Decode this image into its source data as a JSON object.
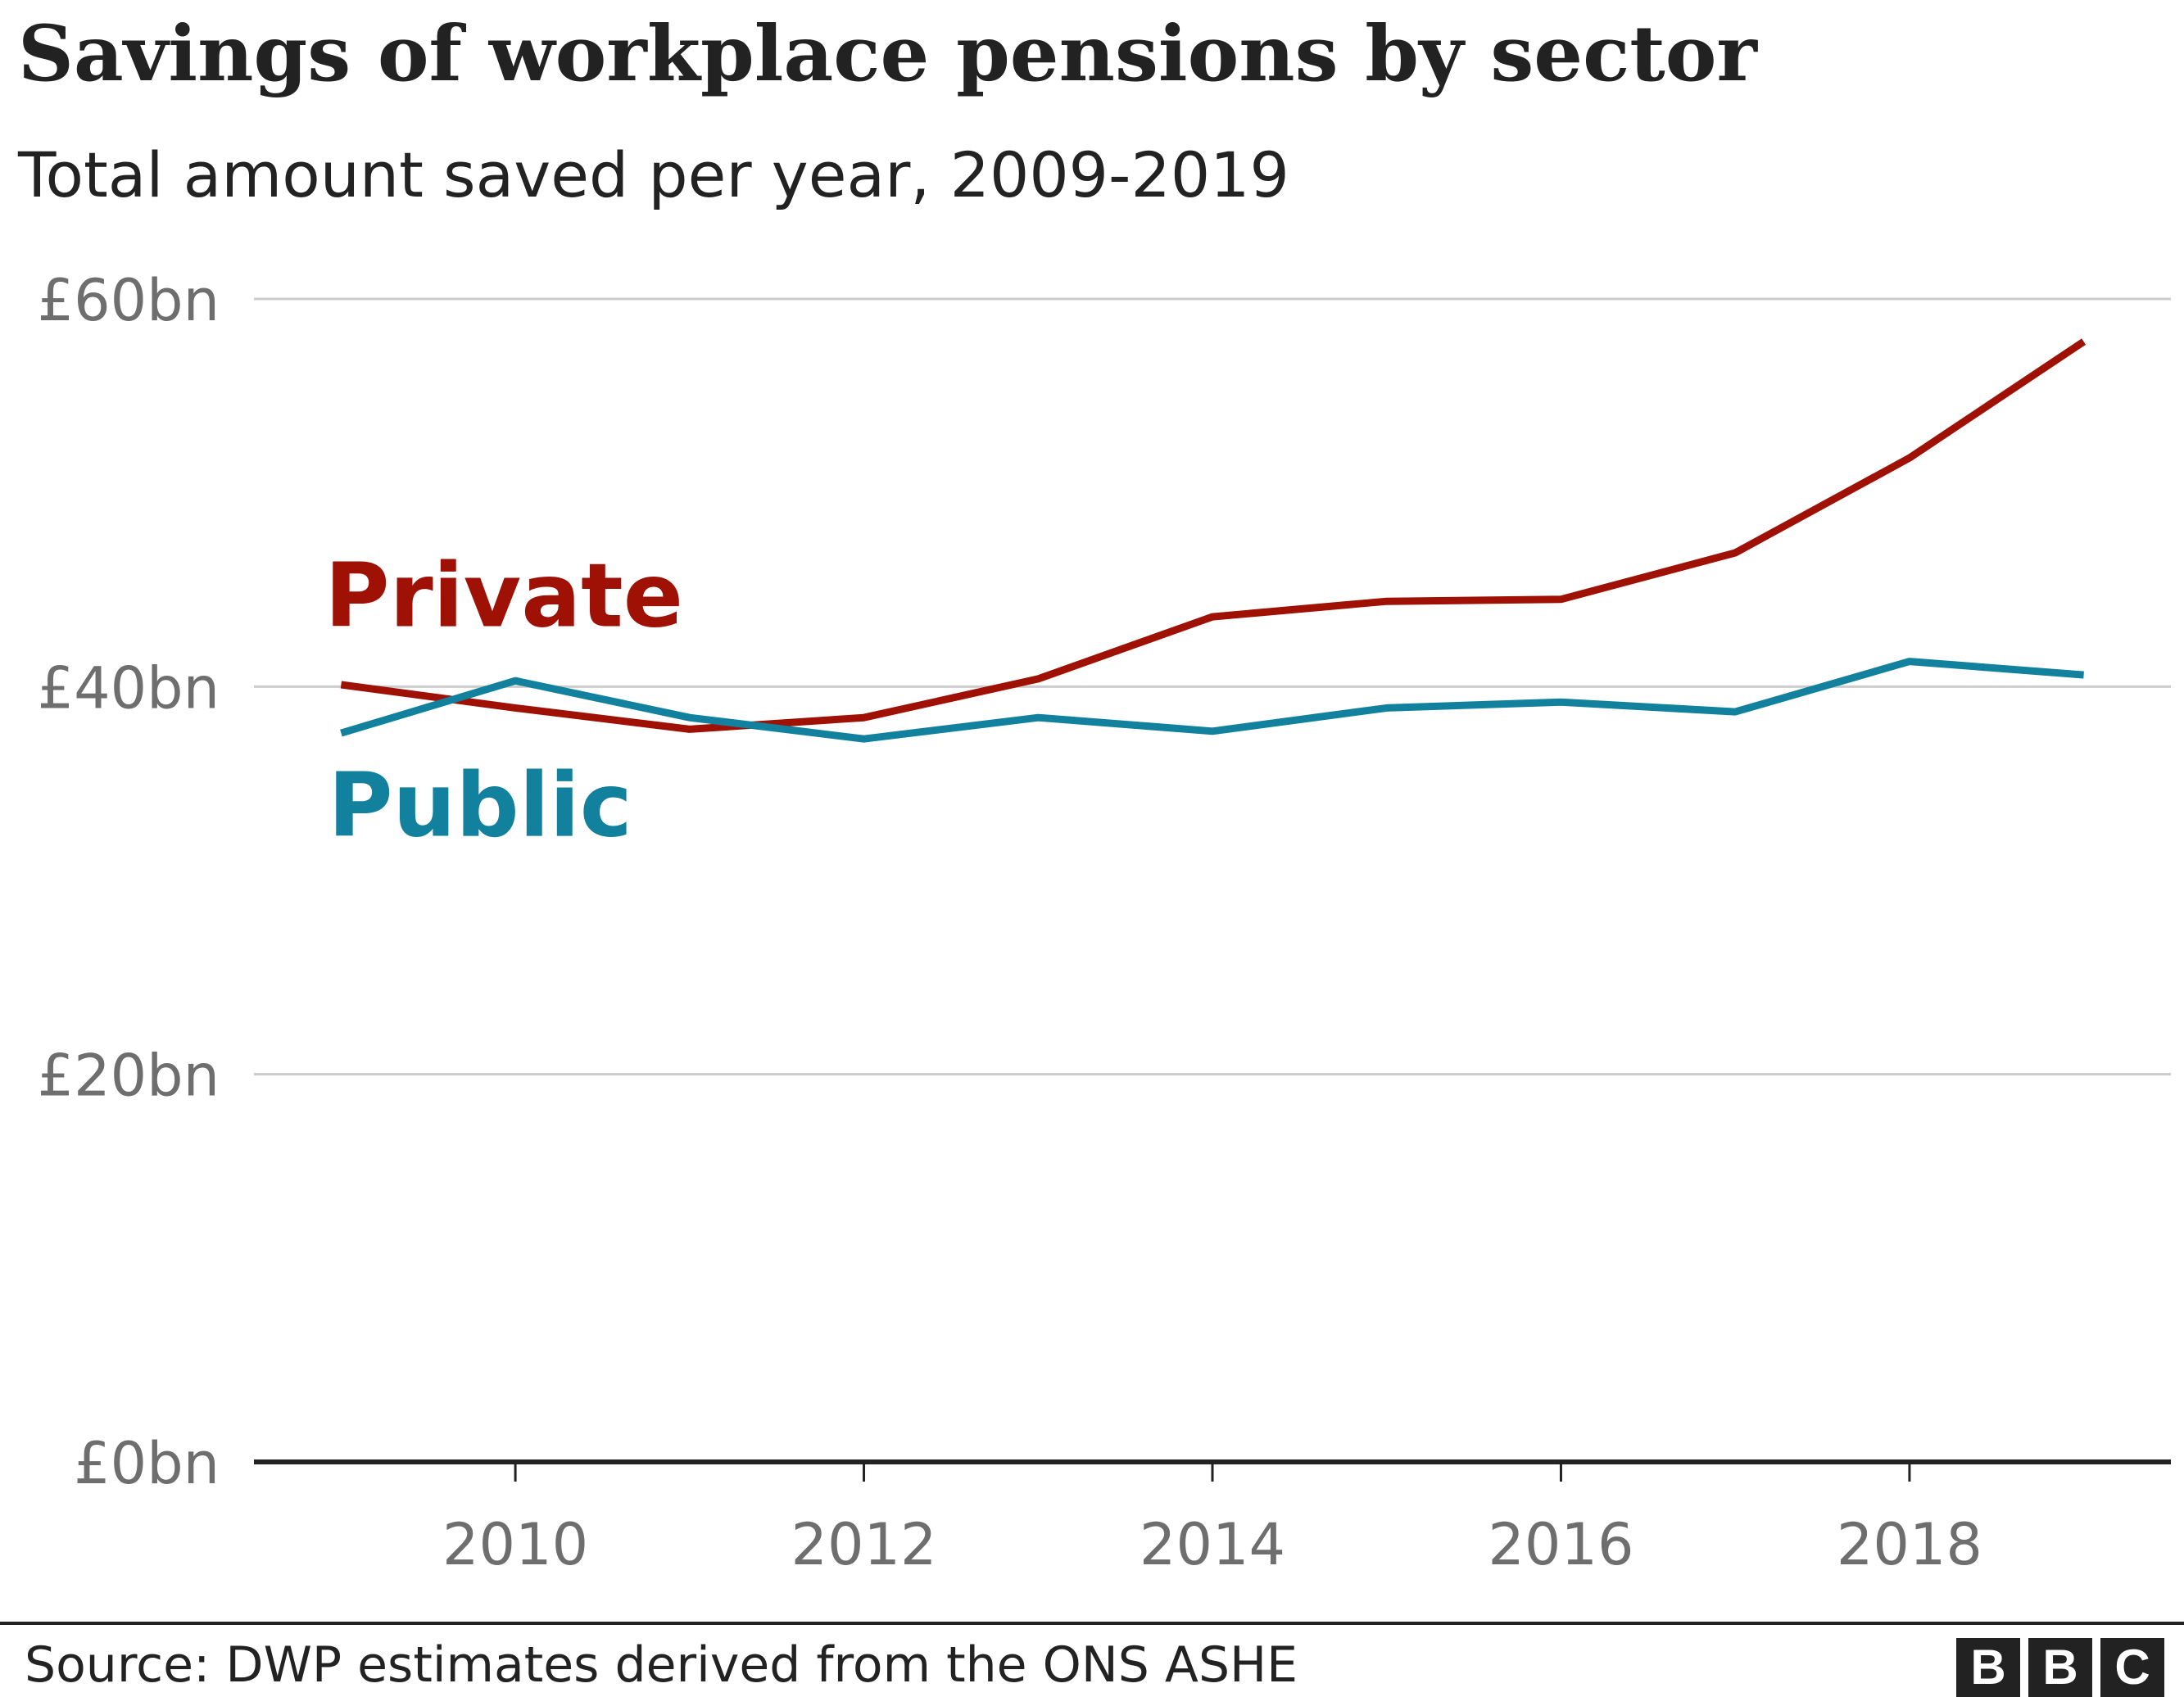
{
  "header": {
    "title": "Savings of workplace pensions by sector",
    "subtitle": "Total amount saved per year, 2009-2019"
  },
  "chart_data": {
    "type": "line",
    "x": [
      2009,
      2010,
      2011,
      2012,
      2013,
      2014,
      2015,
      2016,
      2017,
      2018,
      2019
    ],
    "series": [
      {
        "name": "Private",
        "color": "#9e1104",
        "values": [
          40.1,
          38.9,
          37.8,
          38.4,
          40.4,
          43.6,
          44.4,
          44.5,
          46.9,
          51.8,
          57.8
        ]
      },
      {
        "name": "Public",
        "color": "#12819e",
        "values": [
          37.6,
          40.3,
          38.4,
          37.3,
          38.4,
          37.7,
          38.9,
          39.2,
          38.7,
          41.3,
          40.6
        ]
      }
    ],
    "ylim": [
      0,
      60
    ],
    "xlim": [
      2008.5,
      2019.5
    ],
    "yticks": [
      0,
      20,
      40,
      60
    ],
    "ytick_labels": [
      "£0bn",
      "£20bn",
      "£40bn",
      "£60bn"
    ],
    "xticks": [
      2010,
      2012,
      2014,
      2016,
      2018
    ],
    "xtick_labels": [
      "2010",
      "2012",
      "2014",
      "2016",
      "2018"
    ],
    "grid": true,
    "legend": "inline labels at left of lines"
  },
  "footer": {
    "source": "Source: DWP estimates derived from the ONS ASHE",
    "logo_letters": [
      "B",
      "B",
      "C"
    ]
  }
}
